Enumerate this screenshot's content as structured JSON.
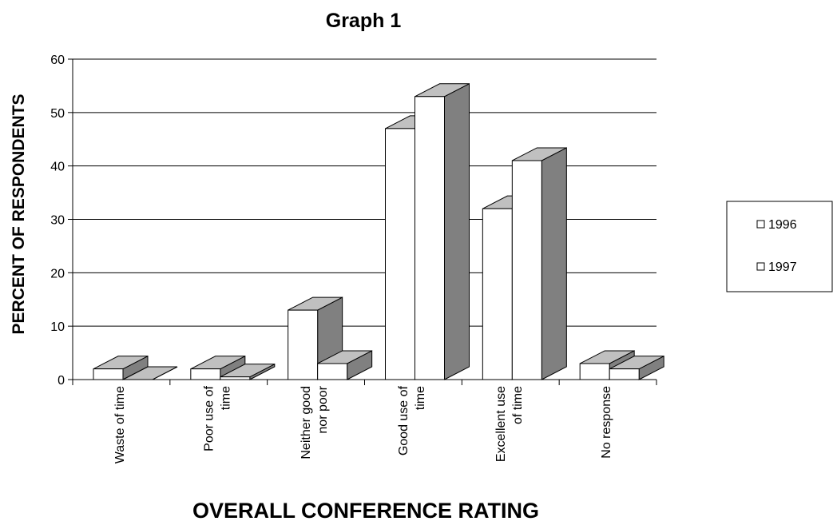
{
  "chart_data": {
    "type": "bar",
    "title": "Graph 1",
    "xlabel": "OVERALL CONFERENCE RATING",
    "ylabel": "PERCENT OF RESPONDENTS",
    "ylim": [
      0,
      60
    ],
    "yticks": [
      "0",
      "10",
      "20",
      "30",
      "40",
      "50",
      "60"
    ],
    "categories": [
      [
        "Waste of time"
      ],
      [
        "Poor use of",
        "time"
      ],
      [
        "Neither good",
        "nor poor"
      ],
      [
        "Good use of",
        "time"
      ],
      [
        "Excellent use",
        "of time"
      ],
      [
        "No response"
      ]
    ],
    "series": [
      {
        "name": "1996",
        "values": [
          2,
          2,
          13,
          47,
          32,
          3
        ]
      },
      {
        "name": "1997",
        "values": [
          0,
          0.5,
          3,
          53,
          41,
          2
        ]
      }
    ],
    "grid": true,
    "legend": "right",
    "colors": {
      "front": "#ffffff",
      "top": "#c0c0c0",
      "side": "#808080",
      "edge": "#000000"
    }
  }
}
